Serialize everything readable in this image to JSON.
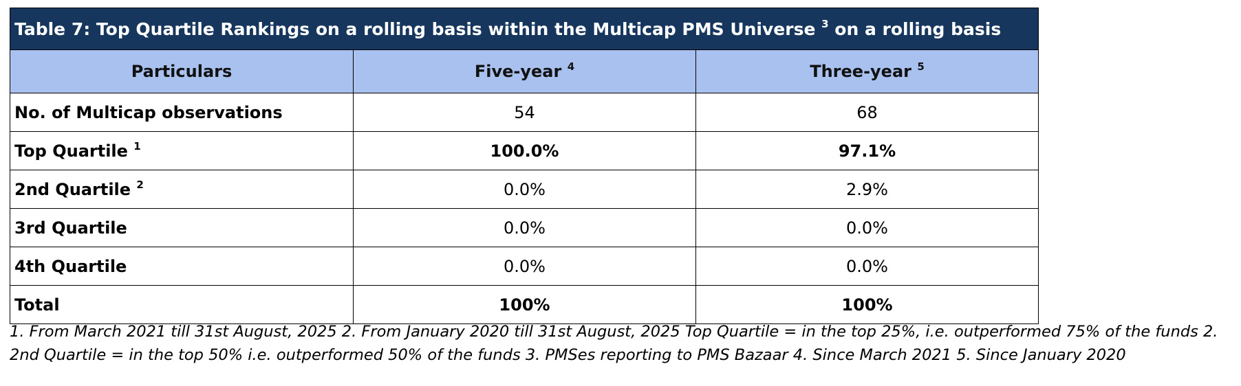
{
  "table": {
    "title": "Table 7: Top Quartile Rankings on a rolling basis within the Multicap PMS Universe",
    "title_sup": "3",
    "title_suffix": "on a rolling basis",
    "headers": [
      {
        "text": "Particulars",
        "sup": ""
      },
      {
        "text": "Five-year",
        "sup": "4"
      },
      {
        "text": "Three-year",
        "sup": "5"
      }
    ],
    "rows": [
      {
        "label": "No. of Multicap observations",
        "sup": "",
        "five_year": "54",
        "three_year": "68",
        "bold_values": false
      },
      {
        "label": "Top Quartile",
        "sup": "1",
        "five_year": "100.0%",
        "three_year": "97.1%",
        "bold_values": true
      },
      {
        "label": "2nd Quartile",
        "sup": "2",
        "five_year": "0.0%",
        "three_year": "2.9%",
        "bold_values": false
      },
      {
        "label": "3rd Quartile",
        "sup": "",
        "five_year": "0.0%",
        "three_year": "0.0%",
        "bold_values": false
      },
      {
        "label": "4th Quartile",
        "sup": "",
        "five_year": "0.0%",
        "three_year": "0.0%",
        "bold_values": false
      },
      {
        "label": "Total",
        "sup": "",
        "five_year": "100%",
        "three_year": "100%",
        "bold_values": true
      }
    ]
  },
  "footnote": "1. From March 2021 till 31st August, 2025 2. From January 2020 till 31st August, 2025 Top Quartile = in the top 25%, i.e. outperformed 75% of the funds 2. 2nd Quartile = in the top 50% i.e. outperformed 50% of the funds 3. PMSes reporting to PMS Bazaar 4. Since March 2021 5. Since January 2020",
  "colors": {
    "title_bg": "#17365d",
    "header_bg": "#a9c1ef"
  }
}
